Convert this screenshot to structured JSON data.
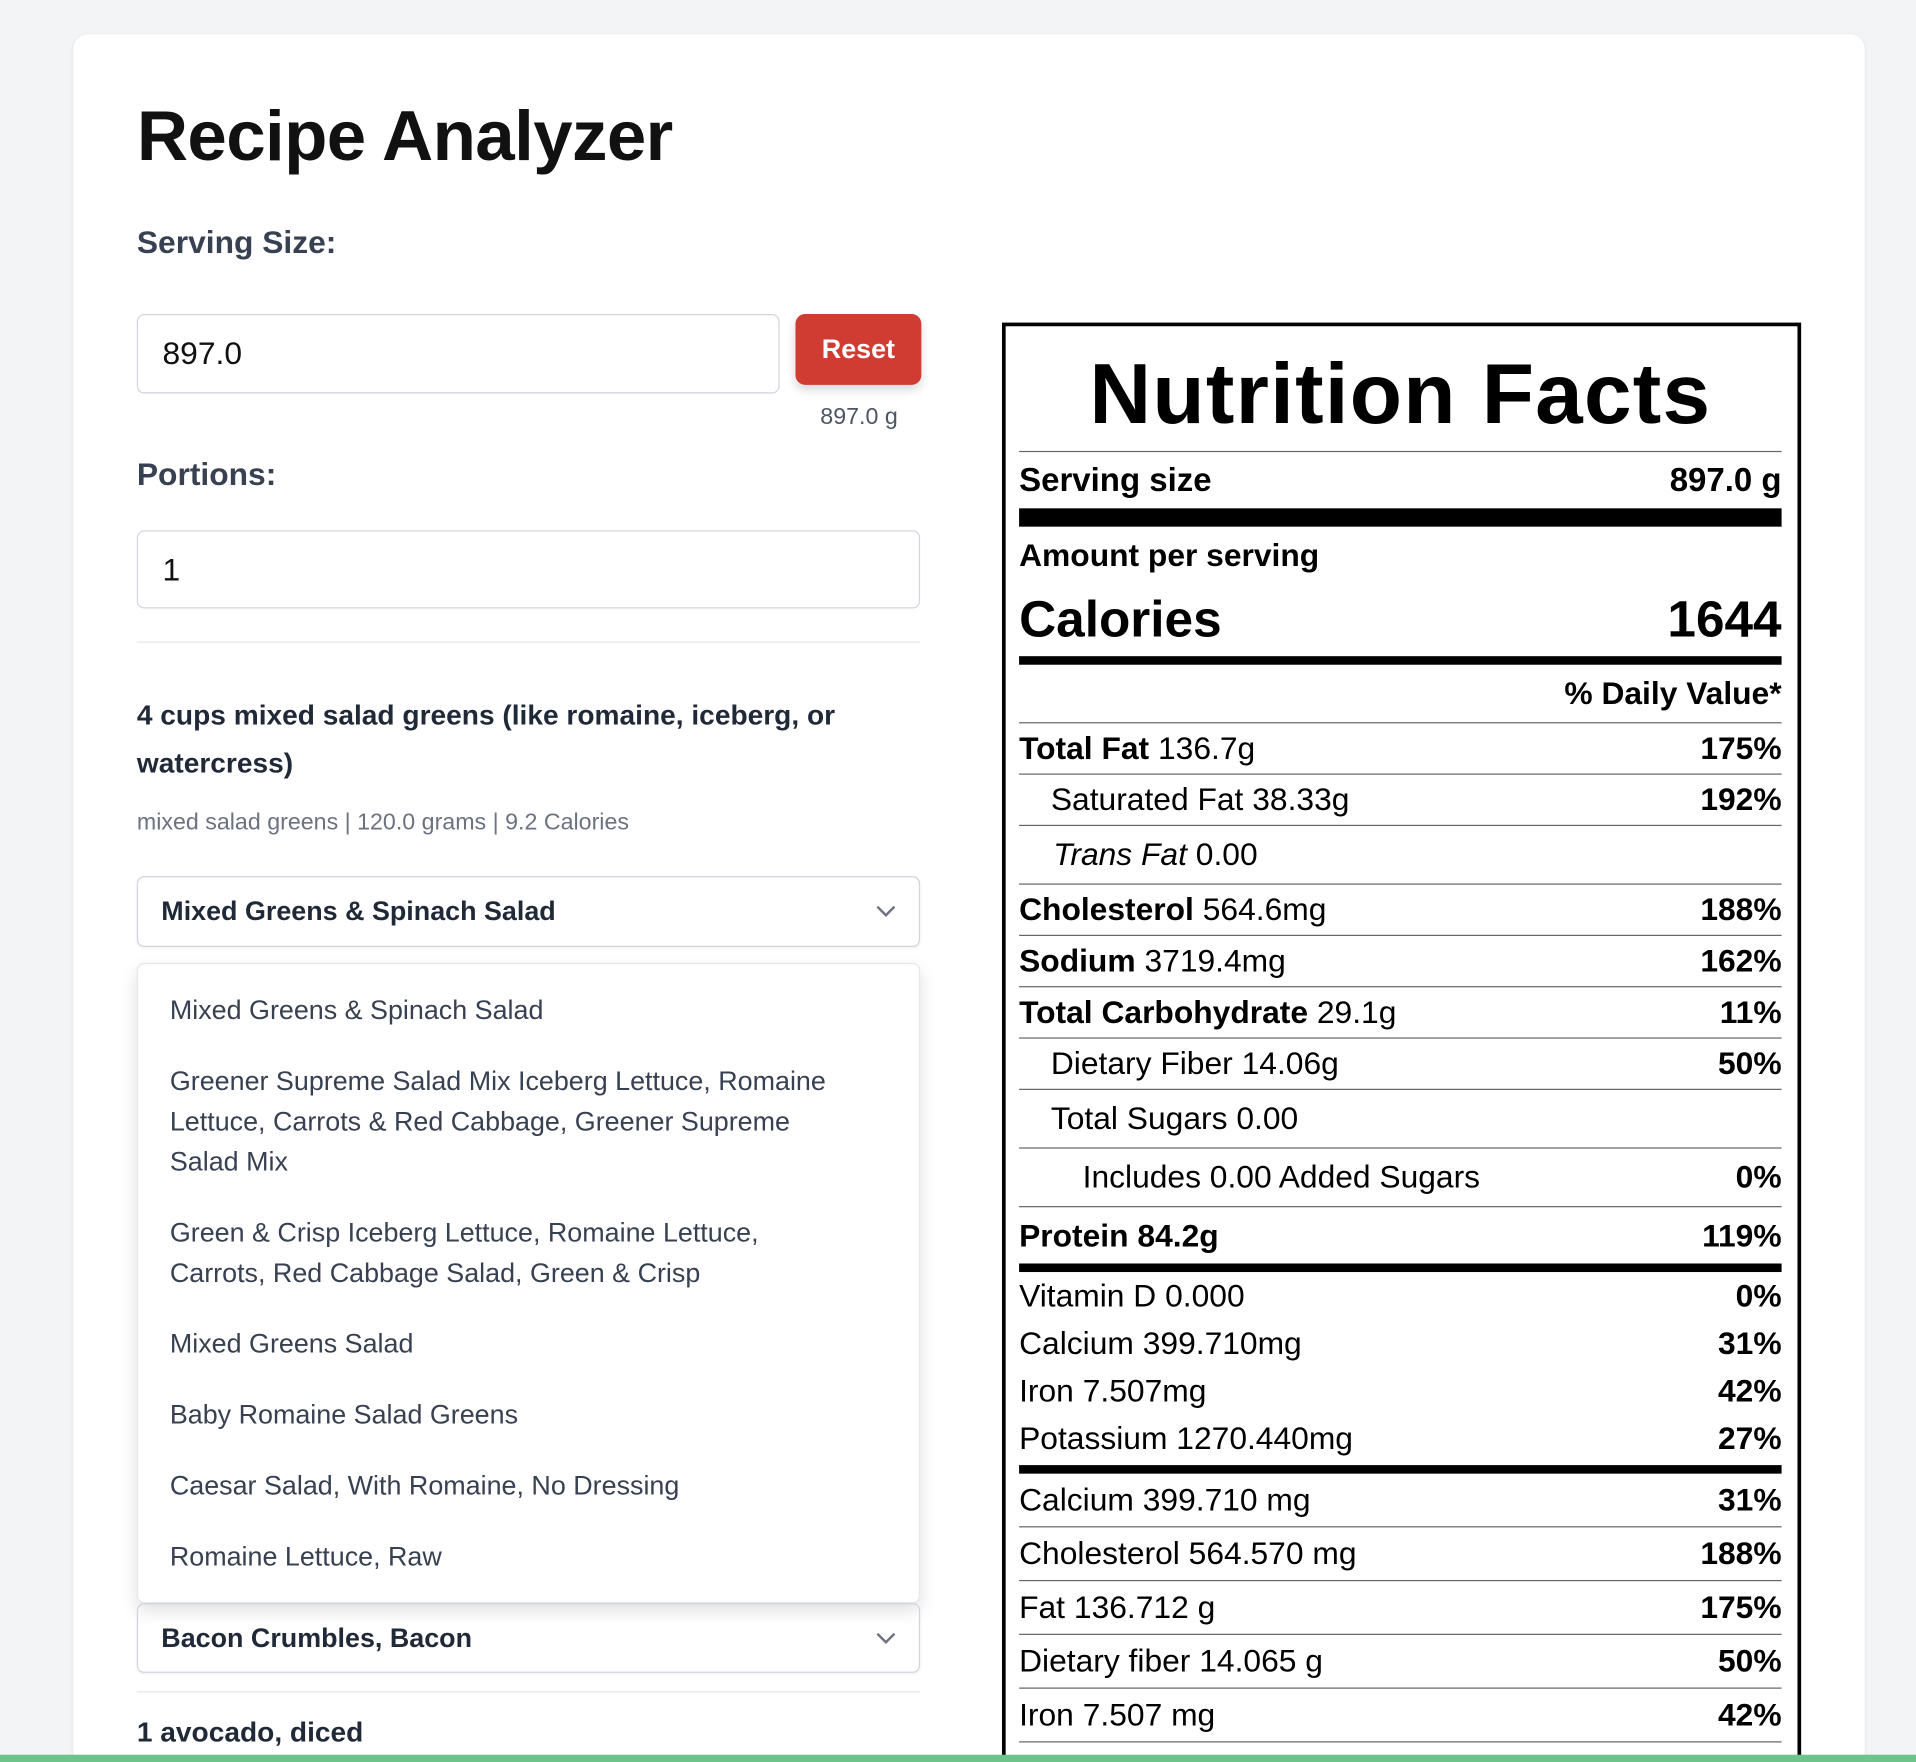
{
  "header": {
    "title": "Recipe Analyzer"
  },
  "serving_size": {
    "label": "Serving Size:",
    "value": "897.0",
    "button": "Reset",
    "hint": "897.0 g"
  },
  "portions": {
    "label": "Portions:",
    "value": "1"
  },
  "ingredients": [
    {
      "text": "4 cups mixed salad greens (like romaine, iceberg, or watercress)",
      "detail": "mixed salad greens | 120.0 grams | 9.2 Calories",
      "selected": "Mixed Greens & Spinach Salad",
      "options": [
        "Mixed Greens & Spinach Salad",
        "Greener Supreme Salad Mix Iceberg Lettuce, Romaine Lettuce, Carrots & Red Cabbage, Greener Supreme Salad Mix",
        "Green & Crisp Iceberg Lettuce, Romaine Lettuce, Carrots, Red Cabbage Salad, Green & Crisp",
        "Mixed Greens Salad",
        "Baby Romaine Salad Greens",
        "Caesar Salad, With Romaine, No Dressing",
        "Romaine Lettuce, Raw"
      ]
    },
    {
      "selected": "Bacon Crumbles, Bacon"
    },
    {
      "text": "1 avocado, diced"
    }
  ],
  "nutrition": {
    "title": "Nutrition Facts",
    "serving_label": "Serving size",
    "serving_value": "897.0 g",
    "amount_label": "Amount per serving",
    "calories_label": "Calories",
    "calories_value": "1644",
    "dv_header": "% Daily Value*",
    "nutrients": [
      {
        "name": "Total Fat",
        "amount": "136.7g",
        "dv": "175%"
      },
      {
        "name": "Saturated Fat",
        "amount": "38.33g",
        "dv": "192%"
      },
      {
        "name": "Trans Fat",
        "amount": "0.00"
      },
      {
        "name": "Cholesterol",
        "amount": "564.6mg",
        "dv": "188%"
      },
      {
        "name": "Sodium",
        "amount": "3719.4mg",
        "dv": "162%"
      },
      {
        "name": "Total Carbohydrate",
        "amount": "29.1g",
        "dv": "11%"
      },
      {
        "name": "Dietary Fiber",
        "amount": "14.06g",
        "dv": "50%"
      },
      {
        "name": "Total Sugars",
        "amount": "0.00"
      },
      {
        "name": "Includes 0.00 Added Sugars",
        "dv": "0%"
      },
      {
        "name": "Protein",
        "amount": "84.2g",
        "dv": "119%"
      }
    ],
    "vitamins": [
      {
        "name": "Vitamin D",
        "amount": "0.000",
        "dv": "0%"
      },
      {
        "name": "Calcium",
        "amount": "399.710mg",
        "dv": "31%"
      },
      {
        "name": "Iron",
        "amount": "7.507mg",
        "dv": "42%"
      },
      {
        "name": "Potassium",
        "amount": "1270.440mg",
        "dv": "27%"
      }
    ],
    "details": [
      {
        "name": "Calcium",
        "amount": "399.710 mg",
        "dv": "31%"
      },
      {
        "name": "Cholesterol",
        "amount": "564.570 mg",
        "dv": "188%"
      },
      {
        "name": "Fat",
        "amount": "136.712 g",
        "dv": "175%"
      },
      {
        "name": "Dietary fiber",
        "amount": "14.065 g",
        "dv": "50%"
      },
      {
        "name": "Iron",
        "amount": "7.507 mg",
        "dv": "42%"
      }
    ]
  }
}
